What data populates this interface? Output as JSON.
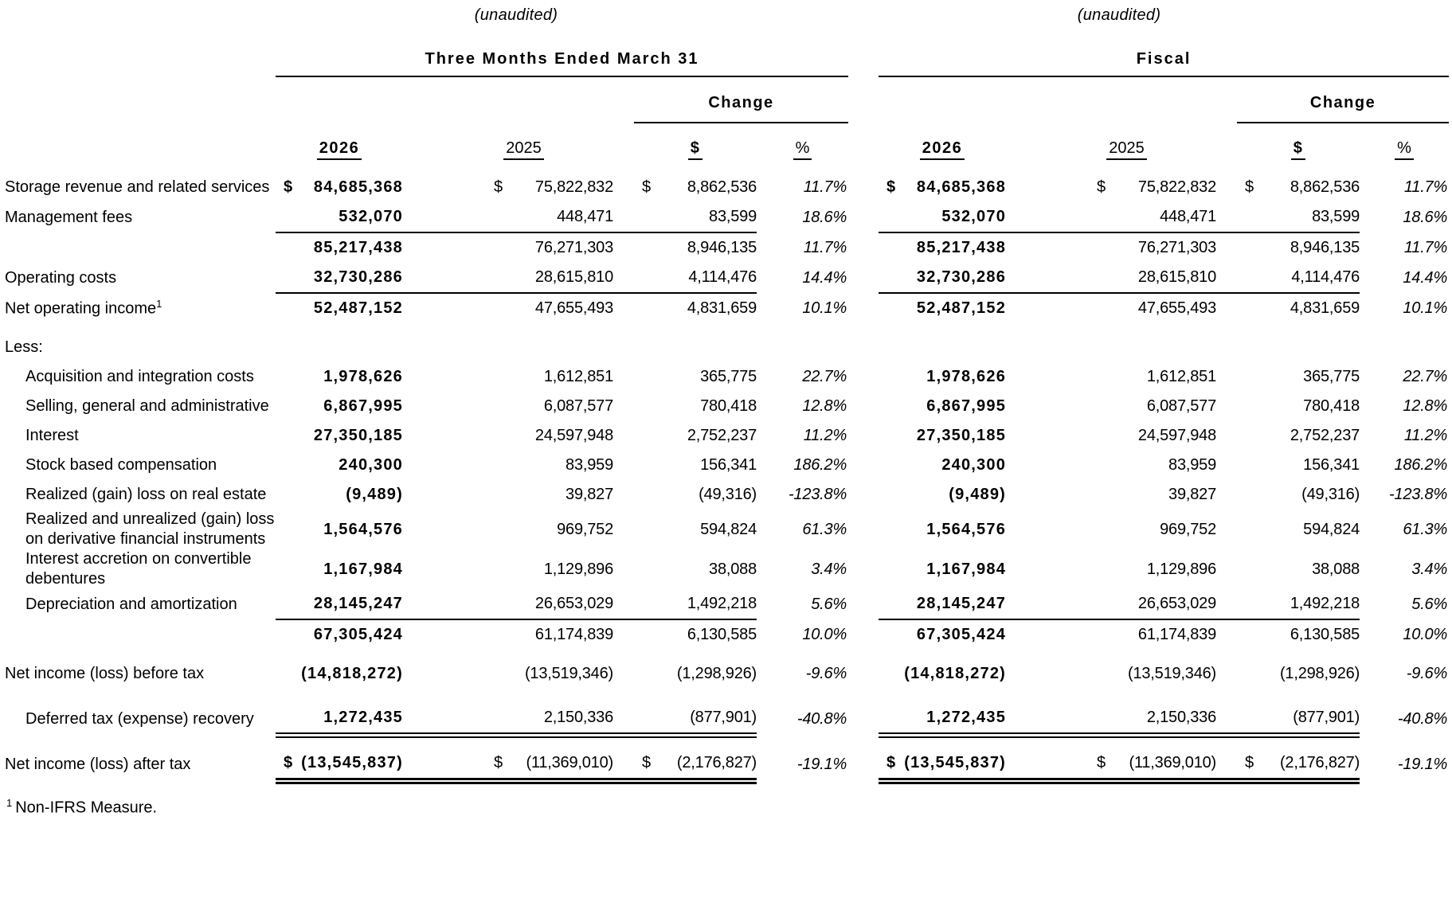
{
  "page": {
    "background": "#ffffff",
    "text_color": "#000000"
  },
  "table": {
    "sections": [
      {
        "unaudited": "(unaudited)",
        "title": "Three Months Ended March 31",
        "change_label": "Change",
        "columns": {
          "year_current": "2026",
          "year_prior": "2025",
          "change_dollar": "$",
          "change_percent": "%"
        }
      },
      {
        "unaudited": "(unaudited)",
        "title": "Fiscal",
        "change_label": "Change",
        "columns": {
          "year_current": "2026",
          "year_prior": "2025",
          "change_dollar": "$",
          "change_percent": "%"
        }
      }
    ],
    "rows": [
      {
        "label": "Storage revenue and related services",
        "indent": false,
        "gap_above": 0,
        "rule_below": "none",
        "three_months": {
          "cur_2026": "$",
          "v_2026": "84,685,368",
          "cur_2025": "$",
          "v_2025": "75,822,832",
          "cur_chg": "$",
          "v_chg": "8,862,536",
          "pct": "11.7%"
        },
        "fiscal": {
          "cur_2026": "$",
          "v_2026": "84,685,368",
          "cur_2025": "$",
          "v_2025": "75,822,832",
          "cur_chg": "$",
          "v_chg": "8,862,536",
          "pct": "11.7%"
        }
      },
      {
        "label": "Management fees",
        "indent": false,
        "gap_above": 0,
        "rule_below": "single",
        "three_months": {
          "cur_2026": "",
          "v_2026": "532,070",
          "cur_2025": "",
          "v_2025": "448,471",
          "cur_chg": "",
          "v_chg": "83,599",
          "pct": "18.6%"
        },
        "fiscal": {
          "cur_2026": "",
          "v_2026": "532,070",
          "cur_2025": "",
          "v_2025": "448,471",
          "cur_chg": "",
          "v_chg": "83,599",
          "pct": "18.6%"
        }
      },
      {
        "label": "",
        "indent": false,
        "gap_above": 0,
        "rule_below": "none",
        "three_months": {
          "cur_2026": "",
          "v_2026": "85,217,438",
          "cur_2025": "",
          "v_2025": "76,271,303",
          "cur_chg": "",
          "v_chg": "8,946,135",
          "pct": "11.7%"
        },
        "fiscal": {
          "cur_2026": "",
          "v_2026": "85,217,438",
          "cur_2025": "",
          "v_2025": "76,271,303",
          "cur_chg": "",
          "v_chg": "8,946,135",
          "pct": "11.7%"
        }
      },
      {
        "label": "Operating costs",
        "indent": false,
        "gap_above": 0,
        "rule_below": "single",
        "three_months": {
          "cur_2026": "",
          "v_2026": "32,730,286",
          "cur_2025": "",
          "v_2025": "28,615,810",
          "cur_chg": "",
          "v_chg": "4,114,476",
          "pct": "14.4%"
        },
        "fiscal": {
          "cur_2026": "",
          "v_2026": "32,730,286",
          "cur_2025": "",
          "v_2025": "28,615,810",
          "cur_chg": "",
          "v_chg": "4,114,476",
          "pct": "14.4%"
        }
      },
      {
        "label": "Net operating income",
        "sup": "1",
        "indent": false,
        "gap_above": 0,
        "rule_below": "none",
        "three_months": {
          "cur_2026": "",
          "v_2026": "52,487,152",
          "cur_2025": "",
          "v_2025": "47,655,493",
          "cur_chg": "",
          "v_chg": "4,831,659",
          "pct": "10.1%"
        },
        "fiscal": {
          "cur_2026": "",
          "v_2026": "52,487,152",
          "cur_2025": "",
          "v_2025": "47,655,493",
          "cur_chg": "",
          "v_chg": "4,831,659",
          "pct": "10.1%"
        }
      },
      {
        "label": "Less:",
        "indent": false,
        "gap_above": 12,
        "rule_below": "none",
        "three_months": null,
        "fiscal": null
      },
      {
        "label": "Acquisition and integration costs",
        "indent": true,
        "gap_above": 0,
        "rule_below": "none",
        "three_months": {
          "cur_2026": "",
          "v_2026": "1,978,626",
          "cur_2025": "",
          "v_2025": "1,612,851",
          "cur_chg": "",
          "v_chg": "365,775",
          "pct": "22.7%"
        },
        "fiscal": {
          "cur_2026": "",
          "v_2026": "1,978,626",
          "cur_2025": "",
          "v_2025": "1,612,851",
          "cur_chg": "",
          "v_chg": "365,775",
          "pct": "22.7%"
        }
      },
      {
        "label": "Selling, general and administrative",
        "indent": true,
        "gap_above": 0,
        "rule_below": "none",
        "three_months": {
          "cur_2026": "",
          "v_2026": "6,867,995",
          "cur_2025": "",
          "v_2025": "6,087,577",
          "cur_chg": "",
          "v_chg": "780,418",
          "pct": "12.8%"
        },
        "fiscal": {
          "cur_2026": "",
          "v_2026": "6,867,995",
          "cur_2025": "",
          "v_2025": "6,087,577",
          "cur_chg": "",
          "v_chg": "780,418",
          "pct": "12.8%"
        }
      },
      {
        "label": "Interest",
        "indent": true,
        "gap_above": 0,
        "rule_below": "none",
        "three_months": {
          "cur_2026": "",
          "v_2026": "27,350,185",
          "cur_2025": "",
          "v_2025": "24,597,948",
          "cur_chg": "",
          "v_chg": "2,752,237",
          "pct": "11.2%"
        },
        "fiscal": {
          "cur_2026": "",
          "v_2026": "27,350,185",
          "cur_2025": "",
          "v_2025": "24,597,948",
          "cur_chg": "",
          "v_chg": "2,752,237",
          "pct": "11.2%"
        }
      },
      {
        "label": "Stock based compensation",
        "indent": true,
        "gap_above": 0,
        "rule_below": "none",
        "three_months": {
          "cur_2026": "",
          "v_2026": "240,300",
          "cur_2025": "",
          "v_2025": "83,959",
          "cur_chg": "",
          "v_chg": "156,341",
          "pct": "186.2%"
        },
        "fiscal": {
          "cur_2026": "",
          "v_2026": "240,300",
          "cur_2025": "",
          "v_2025": "83,959",
          "cur_chg": "",
          "v_chg": "156,341",
          "pct": "186.2%"
        }
      },
      {
        "label": "Realized (gain) loss on real estate",
        "indent": true,
        "gap_above": 0,
        "rule_below": "none",
        "three_months": {
          "cur_2026": "",
          "v_2026": "(9,489)",
          "cur_2025": "",
          "v_2025": "39,827",
          "cur_chg": "",
          "v_chg": "(49,316)",
          "pct": "-123.8%"
        },
        "fiscal": {
          "cur_2026": "",
          "v_2026": "(9,489)",
          "cur_2025": "",
          "v_2025": "39,827",
          "cur_chg": "",
          "v_chg": "(49,316)",
          "pct": "-123.8%"
        }
      },
      {
        "label": "Realized and unrealized (gain) loss on derivative financial instruments",
        "indent": true,
        "gap_above": 0,
        "rule_below": "none",
        "three_months": {
          "cur_2026": "",
          "v_2026": "1,564,576",
          "cur_2025": "",
          "v_2025": "969,752",
          "cur_chg": "",
          "v_chg": "594,824",
          "pct": "61.3%"
        },
        "fiscal": {
          "cur_2026": "",
          "v_2026": "1,564,576",
          "cur_2025": "",
          "v_2025": "969,752",
          "cur_chg": "",
          "v_chg": "594,824",
          "pct": "61.3%"
        }
      },
      {
        "label": "Interest accretion on convertible debentures",
        "indent": true,
        "gap_above": 0,
        "rule_below": "none",
        "three_months": {
          "cur_2026": "",
          "v_2026": "1,167,984",
          "cur_2025": "",
          "v_2025": "1,129,896",
          "cur_chg": "",
          "v_chg": "38,088",
          "pct": "3.4%"
        },
        "fiscal": {
          "cur_2026": "",
          "v_2026": "1,167,984",
          "cur_2025": "",
          "v_2025": "1,129,896",
          "cur_chg": "",
          "v_chg": "38,088",
          "pct": "3.4%"
        }
      },
      {
        "label": "Depreciation and amortization",
        "indent": true,
        "gap_above": 0,
        "rule_below": "single",
        "three_months": {
          "cur_2026": "",
          "v_2026": "28,145,247",
          "cur_2025": "",
          "v_2025": "26,653,029",
          "cur_chg": "",
          "v_chg": "1,492,218",
          "pct": "5.6%"
        },
        "fiscal": {
          "cur_2026": "",
          "v_2026": "28,145,247",
          "cur_2025": "",
          "v_2025": "26,653,029",
          "cur_chg": "",
          "v_chg": "1,492,218",
          "pct": "5.6%"
        }
      },
      {
        "label": "",
        "indent": false,
        "gap_above": 0,
        "rule_below": "none",
        "three_months": {
          "cur_2026": "",
          "v_2026": "67,305,424",
          "cur_2025": "",
          "v_2025": "61,174,839",
          "cur_chg": "",
          "v_chg": "6,130,585",
          "pct": "10.0%"
        },
        "fiscal": {
          "cur_2026": "",
          "v_2026": "67,305,424",
          "cur_2025": "",
          "v_2025": "61,174,839",
          "cur_chg": "",
          "v_chg": "6,130,585",
          "pct": "10.0%"
        }
      },
      {
        "label": "Net income (loss) before tax",
        "indent": false,
        "gap_above": 12,
        "rule_below": "none",
        "three_months": {
          "cur_2026": "",
          "v_2026": "(14,818,272)",
          "cur_2025": "",
          "v_2025": "(13,519,346)",
          "cur_chg": "",
          "v_chg": "(1,298,926)",
          "pct": "-9.6%"
        },
        "fiscal": {
          "cur_2026": "",
          "v_2026": "(14,818,272)",
          "cur_2025": "",
          "v_2025": "(13,519,346)",
          "cur_chg": "",
          "v_chg": "(1,298,926)",
          "pct": "-9.6%"
        }
      },
      {
        "label": "Deferred tax (expense) recovery",
        "indent": true,
        "gap_above": 18,
        "rule_below": "double",
        "three_months": {
          "cur_2026": "",
          "v_2026": "1,272,435",
          "cur_2025": "",
          "v_2025": "2,150,336",
          "cur_chg": "",
          "v_chg": "(877,901)",
          "pct": "-40.8%"
        },
        "fiscal": {
          "cur_2026": "",
          "v_2026": "1,272,435",
          "cur_2025": "",
          "v_2025": "2,150,336",
          "cur_chg": "",
          "v_chg": "(877,901)",
          "pct": "-40.8%"
        }
      },
      {
        "label": "Net income (loss) after tax",
        "indent": false,
        "gap_above": 16,
        "rule_below": "final",
        "three_months": {
          "cur_2026": "$",
          "v_2026": "(13,545,837)",
          "cur_2025": "$",
          "v_2025": "(11,369,010)",
          "cur_chg": "$",
          "v_chg": "(2,176,827)",
          "pct": "-19.1%"
        },
        "fiscal": {
          "cur_2026": "$",
          "v_2026": "(13,545,837)",
          "cur_2025": "$",
          "v_2025": "(11,369,010)",
          "cur_chg": "$",
          "v_chg": "(2,176,827)",
          "pct": "-19.1%"
        }
      }
    ],
    "footnote": {
      "sup": "1",
      "text": "Non-IFRS Measure."
    }
  }
}
